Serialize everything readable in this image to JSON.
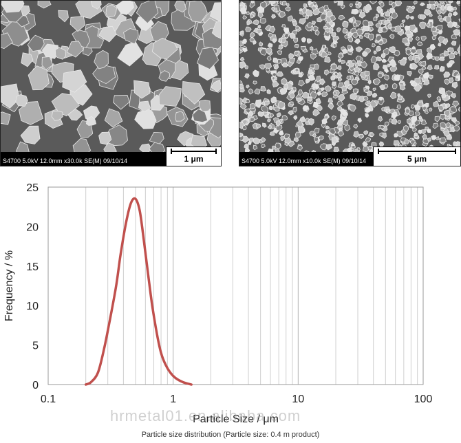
{
  "images": [
    {
      "caption": "S4700 5.0kV 12.0mm x30.0k SE(M) 09/10/14",
      "scale": "1 μm"
    },
    {
      "caption": "S4700 5.0kV 12.0mm x10.0k SE(M) 09/10/14",
      "scale": "5 μm"
    }
  ],
  "chart_data": {
    "type": "line",
    "xlabel": "Particle Size / μm",
    "ylabel": "Frequency / %",
    "xscale": "log",
    "xlim": [
      0.1,
      100
    ],
    "ylim": [
      0,
      25
    ],
    "xticks": [
      "0.1",
      "1",
      "10",
      "100"
    ],
    "yticks": [
      "0",
      "5",
      "10",
      "15",
      "20",
      "25"
    ],
    "grid": "vertical minor + major",
    "line_color": "#c0504d",
    "series": [
      {
        "x": [
          0.2,
          0.22,
          0.25,
          0.28,
          0.31,
          0.35,
          0.38,
          0.42,
          0.46,
          0.5,
          0.54,
          0.58,
          0.63,
          0.68,
          0.74,
          0.8,
          0.87,
          0.95,
          1.05,
          1.2,
          1.4
        ],
        "y": [
          0,
          0.3,
          1.5,
          4.5,
          8,
          12.5,
          16.5,
          20.5,
          23,
          23.5,
          22,
          18.5,
          14,
          10,
          6.5,
          4,
          2.5,
          1.5,
          0.8,
          0.3,
          0
        ]
      }
    ]
  },
  "watermark": "hrmetal01.en.alibaba.com",
  "caption": "Particle size distribution (Particle size: 0.4 m product)"
}
